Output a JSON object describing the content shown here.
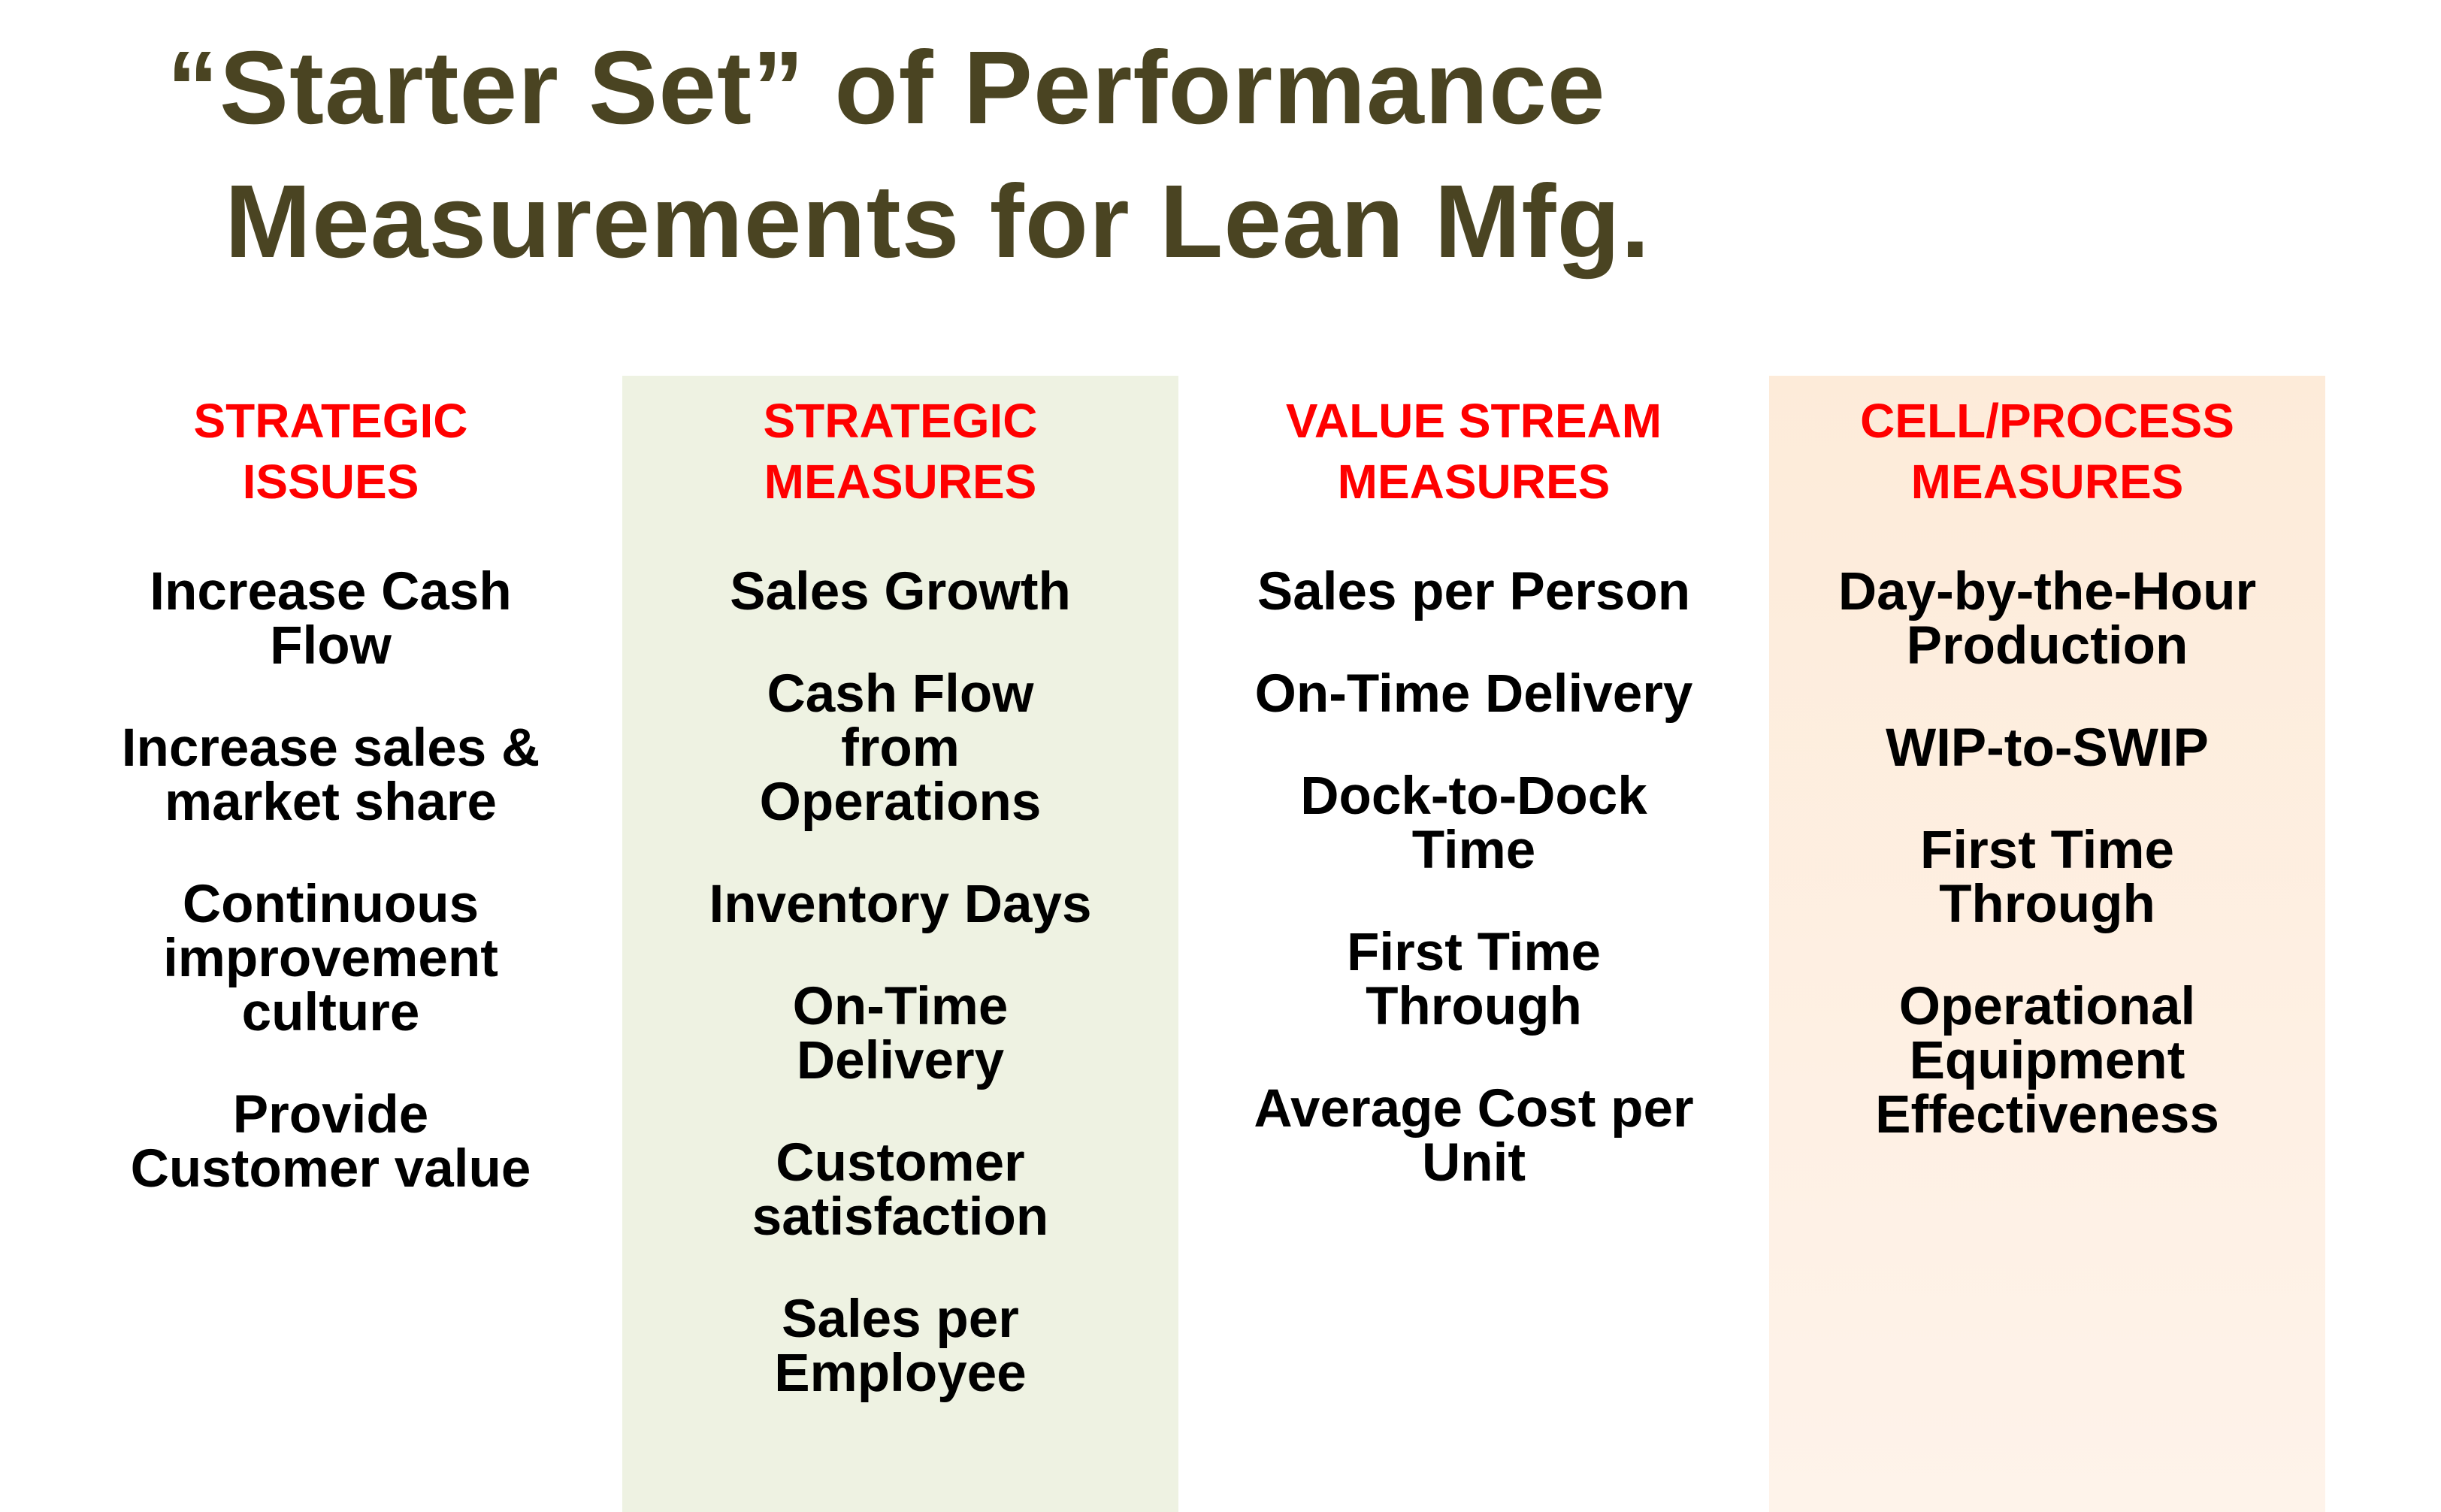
{
  "title": {
    "line1": "“Starter Set” of Performance",
    "line2": "Measurements for Lean Mfg."
  },
  "colors": {
    "title": "#4a4422",
    "header": "#ff0000",
    "item": "#000000",
    "panel_green": "#eef2e2",
    "panel_peach": "#fdebd9"
  },
  "columns": [
    {
      "header": "STRATEGIC\nISSUES",
      "items": [
        "Increase Cash\nFlow",
        "Increase sales &\nmarket share",
        "Continuous\nimprovement\nculture",
        "Provide\nCustomer value"
      ]
    },
    {
      "header": "STRATEGIC\nMEASURES",
      "items": [
        "Sales Growth",
        "Cash Flow\nfrom\nOperations",
        "Inventory Days",
        "On-Time\nDelivery",
        "Customer\nsatisfaction",
        "Sales per\nEmployee"
      ]
    },
    {
      "header": "VALUE STREAM\nMEASURES",
      "items": [
        "Sales per Person",
        "On-Time Delivery",
        "Dock-to-Dock\nTime",
        "First Time\nThrough",
        "Average Cost per\nUnit"
      ]
    },
    {
      "header": "CELL/PROCESS\nMEASURES",
      "items": [
        "Day-by-the-Hour\nProduction",
        "WIP-to-SWIP",
        "First Time\nThrough",
        "Operational\nEquipment\nEffectiveness"
      ]
    }
  ]
}
